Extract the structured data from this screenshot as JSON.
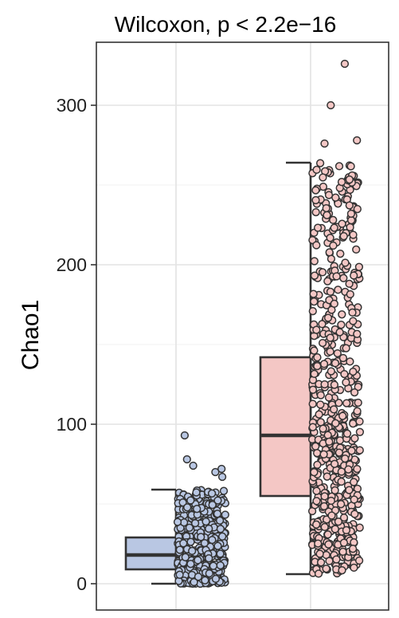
{
  "chart_data": {
    "type": "box",
    "title": "Wilcoxon, p < 2.2e−16",
    "xlabel": "",
    "ylabel": "Chao1",
    "ylim": [
      -16,
      340
    ],
    "yticks": [
      0,
      100,
      200,
      300
    ],
    "ytick_labels": [
      "0",
      "100",
      "200",
      "300"
    ],
    "grid": true,
    "legend": "none",
    "groups": [
      {
        "color": "#b9c7e3",
        "box": {
          "whisker_low": 0,
          "q1": 9,
          "median": 18,
          "q3": 29,
          "whisker_high": 59
        },
        "outliers": [
          67,
          70,
          72,
          74,
          78,
          93
        ],
        "jitter_n": 420
      },
      {
        "color": "#f4c7c5",
        "box": {
          "whisker_low": 6,
          "q1": 55,
          "median": 93,
          "q3": 142,
          "whisker_high": 264
        },
        "outliers": [
          276,
          278,
          300,
          326
        ],
        "jitter_n": 620
      }
    ]
  }
}
